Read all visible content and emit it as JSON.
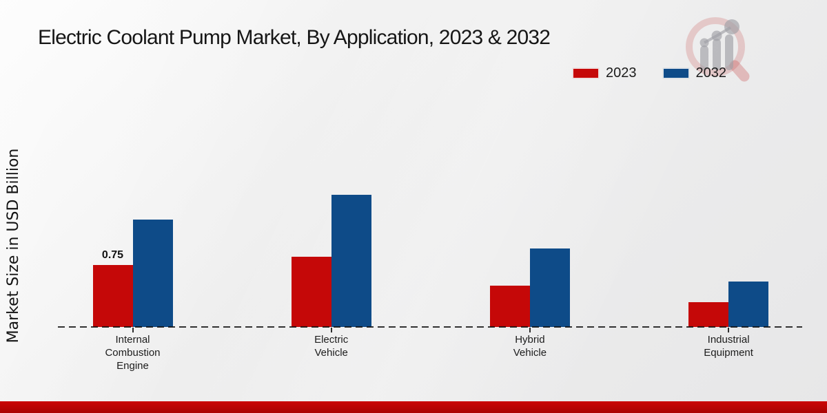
{
  "chart_data": {
    "type": "bar",
    "title": "Electric Coolant Pump Market, By Application, 2023 & 2032",
    "ylabel": "Market Size in USD Billion",
    "categories": [
      "Internal Combustion Engine",
      "Electric Vehicle",
      "Hybrid Vehicle",
      "Industrial Equipment"
    ],
    "series": [
      {
        "name": "2023",
        "color": "#c50808",
        "values": [
          0.75,
          0.85,
          0.5,
          0.3
        ]
      },
      {
        "name": "2032",
        "color": "#0e4b88",
        "values": [
          1.3,
          1.6,
          0.95,
          0.55
        ]
      }
    ],
    "annotations": [
      {
        "series": "2023",
        "category": "Internal Combustion Engine",
        "text": "0.75"
      }
    ],
    "ylim": [
      0,
      1.8
    ],
    "grid": false,
    "legend_position": "top-right",
    "baseline_style": "dashed-black",
    "y_axis_ticks_visible": false
  },
  "icons": {
    "watermark": "magnifier-growth-chart-logo"
  },
  "colors": {
    "series_2023_red": "#c50808",
    "series_2032_blue": "#0e4b88",
    "footer_bar_red": "#c30505",
    "background_gray": "#ececec"
  }
}
